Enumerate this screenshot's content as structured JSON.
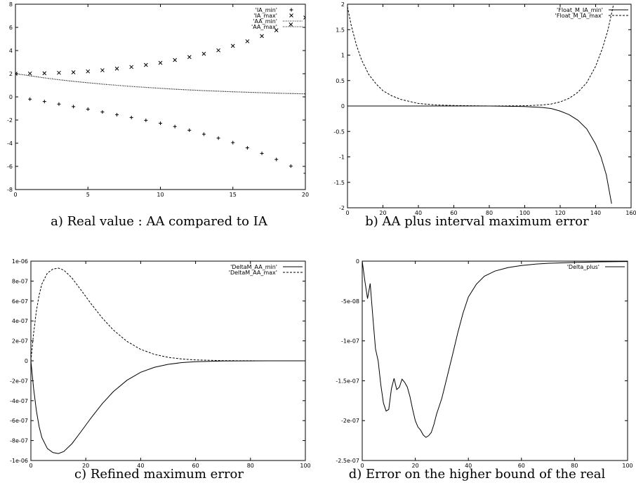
{
  "chart_data": [
    {
      "type": "scatter",
      "caption": "a) Real value : AA compared to IA",
      "xlim": [
        0,
        20
      ],
      "ylim": [
        -8,
        8
      ],
      "xticks": [
        "0",
        "5",
        "10",
        "15",
        "20"
      ],
      "yticks": [
        "8",
        "6",
        "4",
        "2",
        "0",
        "-2",
        "-4",
        "-6",
        "-8"
      ],
      "legend_position": "top-right",
      "series": [
        {
          "name": "'IA_min'",
          "style": "plus",
          "x": [
            0,
            1,
            2,
            3,
            4,
            5,
            6,
            7,
            8,
            9,
            10,
            11,
            12,
            13,
            14,
            15,
            16,
            17,
            18,
            19,
            20
          ],
          "y": [
            2,
            -0.2,
            -0.4,
            -0.62,
            -0.84,
            -1.06,
            -1.3,
            -1.54,
            -1.78,
            -2.02,
            -2.28,
            -2.56,
            -2.88,
            -3.22,
            -3.56,
            -3.95,
            -4.4,
            -4.88,
            -5.4,
            -5.98,
            -6.6
          ]
        },
        {
          "name": "'IA_max'",
          "style": "cross",
          "x": [
            0,
            1,
            2,
            3,
            4,
            5,
            6,
            7,
            8,
            9,
            10,
            11,
            12,
            13,
            14,
            15,
            16,
            17,
            18,
            19,
            20
          ],
          "y": [
            2,
            2.02,
            2.04,
            2.08,
            2.12,
            2.2,
            2.3,
            2.44,
            2.58,
            2.76,
            2.94,
            3.18,
            3.44,
            3.72,
            4.02,
            4.4,
            4.8,
            5.25,
            5.75,
            6.25,
            6.85
          ]
        },
        {
          "name": "'AA_min'",
          "style": "dotted",
          "x": [
            0,
            1,
            2,
            3,
            4,
            5,
            6,
            7,
            8,
            9,
            10,
            11,
            12,
            13,
            14,
            15,
            16,
            17,
            18,
            19,
            20
          ],
          "y": [
            2,
            1.82,
            1.64,
            1.48,
            1.34,
            1.22,
            1.1,
            1,
            0.9,
            0.82,
            0.74,
            0.66,
            0.6,
            0.54,
            0.49,
            0.44,
            0.4,
            0.36,
            0.32,
            0.29,
            0.26
          ]
        },
        {
          "name": "'AA_max'",
          "style": "dotted",
          "x": [
            0,
            1,
            2,
            3,
            4,
            5,
            6,
            7,
            8,
            9,
            10,
            11,
            12,
            13,
            14,
            15,
            16,
            17,
            18,
            19,
            20
          ],
          "y": [
            2,
            1.82,
            1.64,
            1.48,
            1.34,
            1.22,
            1.1,
            1,
            0.9,
            0.82,
            0.74,
            0.66,
            0.6,
            0.54,
            0.49,
            0.44,
            0.4,
            0.36,
            0.32,
            0.29,
            0.26
          ]
        }
      ]
    },
    {
      "type": "line",
      "caption": "b) AA plus interval maximum error",
      "xlim": [
        0,
        160
      ],
      "ylim": [
        -2,
        2
      ],
      "xticks": [
        "0",
        "20",
        "40",
        "60",
        "80",
        "100",
        "120",
        "140",
        "160"
      ],
      "yticks": [
        "2",
        "1.5",
        "1",
        "0.5",
        "0",
        "-0.5",
        "-1",
        "-1.5",
        "-2"
      ],
      "legend_position": "top-right",
      "series": [
        {
          "name": "'Float_M_IA_min'",
          "style": "solid",
          "x": [
            0,
            20,
            40,
            60,
            80,
            90,
            100,
            110,
            115,
            120,
            125,
            130,
            135,
            140,
            143,
            146,
            149
          ],
          "y": [
            0,
            0,
            0,
            0,
            0,
            -0.005,
            -0.01,
            -0.03,
            -0.05,
            -0.1,
            -0.17,
            -0.28,
            -0.45,
            -0.75,
            -1.0,
            -1.35,
            -1.92
          ]
        },
        {
          "name": "'Float_M_IA_max'",
          "style": "dashed",
          "x": [
            0,
            2,
            5,
            8,
            12,
            16,
            20,
            25,
            30,
            40,
            50,
            60,
            80,
            100,
            110,
            115,
            120,
            125,
            130,
            135,
            140,
            144,
            147,
            150
          ],
          "y": [
            1.95,
            1.6,
            1.2,
            0.9,
            0.62,
            0.44,
            0.3,
            0.2,
            0.13,
            0.05,
            0.02,
            0.01,
            0,
            0.005,
            0.02,
            0.04,
            0.08,
            0.15,
            0.27,
            0.46,
            0.78,
            1.15,
            1.5,
            1.98
          ]
        }
      ]
    },
    {
      "type": "line",
      "caption": "c) Refined maximum error",
      "xlim": [
        0,
        100
      ],
      "ylim": [
        -1e-06,
        1e-06
      ],
      "xticks": [
        "0",
        "20",
        "40",
        "60",
        "80",
        "100"
      ],
      "yticks": [
        "1e-06",
        "8e-07",
        "6e-07",
        "4e-07",
        "2e-07",
        "0",
        "-2e-07",
        "-4e-07",
        "-6e-07",
        "-8e-07",
        "-1e-06"
      ],
      "legend_position": "top-right",
      "series": [
        {
          "name": "'DeltaM_AA_min'",
          "style": "solid",
          "x": [
            0,
            1,
            2,
            3,
            4,
            6,
            8,
            10,
            12,
            15,
            18,
            22,
            26,
            30,
            35,
            40,
            45,
            50,
            55,
            60,
            70,
            80,
            90,
            100
          ],
          "y": [
            0,
            -2.8e-07,
            -5e-07,
            -6.6e-07,
            -7.7e-07,
            -8.8e-07,
            -9.2e-07,
            -9.3e-07,
            -9.1e-07,
            -8.3e-07,
            -7.2e-07,
            -5.7e-07,
            -4.3e-07,
            -3.1e-07,
            -1.95e-07,
            -1.15e-07,
            -6.5e-08,
            -3.5e-08,
            -1.8e-08,
            -9e-09,
            -2e-09,
            -5e-10,
            -1e-10,
            0
          ]
        },
        {
          "name": "'DeltaM_AA_max'",
          "style": "dashed",
          "x": [
            0,
            1,
            2,
            3,
            4,
            6,
            8,
            10,
            12,
            15,
            18,
            22,
            26,
            30,
            35,
            40,
            45,
            50,
            55,
            60,
            70,
            80,
            90,
            100
          ],
          "y": [
            0,
            2.8e-07,
            5e-07,
            6.6e-07,
            7.7e-07,
            8.8e-07,
            9.2e-07,
            9.3e-07,
            9.1e-07,
            8.3e-07,
            7.2e-07,
            5.7e-07,
            4.3e-07,
            3.1e-07,
            1.95e-07,
            1.15e-07,
            6.5e-08,
            3.5e-08,
            1.8e-08,
            9e-09,
            2e-09,
            5e-10,
            1e-10,
            0
          ]
        }
      ]
    },
    {
      "type": "line",
      "caption": "d) Error on the higher bound of the real",
      "xlim": [
        0,
        100
      ],
      "ylim": [
        -2.5e-07,
        0
      ],
      "xticks": [
        "0",
        "20",
        "40",
        "60",
        "80",
        "100"
      ],
      "yticks": [
        "0",
        "-5e-08",
        "-1e-07",
        "-1.5e-07",
        "-2e-07",
        "-2.5e-07"
      ],
      "legend_position": "top-right",
      "series": [
        {
          "name": "'Delta_plus'",
          "style": "solid",
          "x": [
            0,
            1,
            2,
            3,
            4,
            5,
            6,
            7,
            8,
            9,
            10,
            11,
            12,
            13,
            14,
            15,
            16,
            17,
            18,
            19,
            20,
            21,
            22,
            23,
            24,
            25,
            26,
            27,
            28,
            30,
            32,
            34,
            36,
            38,
            40,
            43,
            46,
            50,
            55,
            60,
            65,
            70,
            80,
            90,
            100
          ],
          "y": [
            0,
            -2.5e-08,
            -4.7e-08,
            -2.8e-08,
            -7e-08,
            -1.1e-07,
            -1.25e-07,
            -1.55e-07,
            -1.78e-07,
            -1.88e-07,
            -1.86e-07,
            -1.6e-07,
            -1.47e-07,
            -1.61e-07,
            -1.58e-07,
            -1.48e-07,
            -1.52e-07,
            -1.58e-07,
            -1.7e-07,
            -1.86e-07,
            -2e-07,
            -2.08e-07,
            -2.12e-07,
            -2.18e-07,
            -2.21e-07,
            -2.19e-07,
            -2.15e-07,
            -2.05e-07,
            -1.92e-07,
            -1.72e-07,
            -1.45e-07,
            -1.18e-07,
            -9e-08,
            -6.5e-08,
            -4.5e-08,
            -2.9e-08,
            -1.9e-08,
            -1.25e-08,
            -8e-09,
            -5.5e-09,
            -3.8e-09,
            -2.8e-09,
            -1.6e-09,
            -9e-10,
            -5e-10
          ]
        }
      ]
    }
  ]
}
